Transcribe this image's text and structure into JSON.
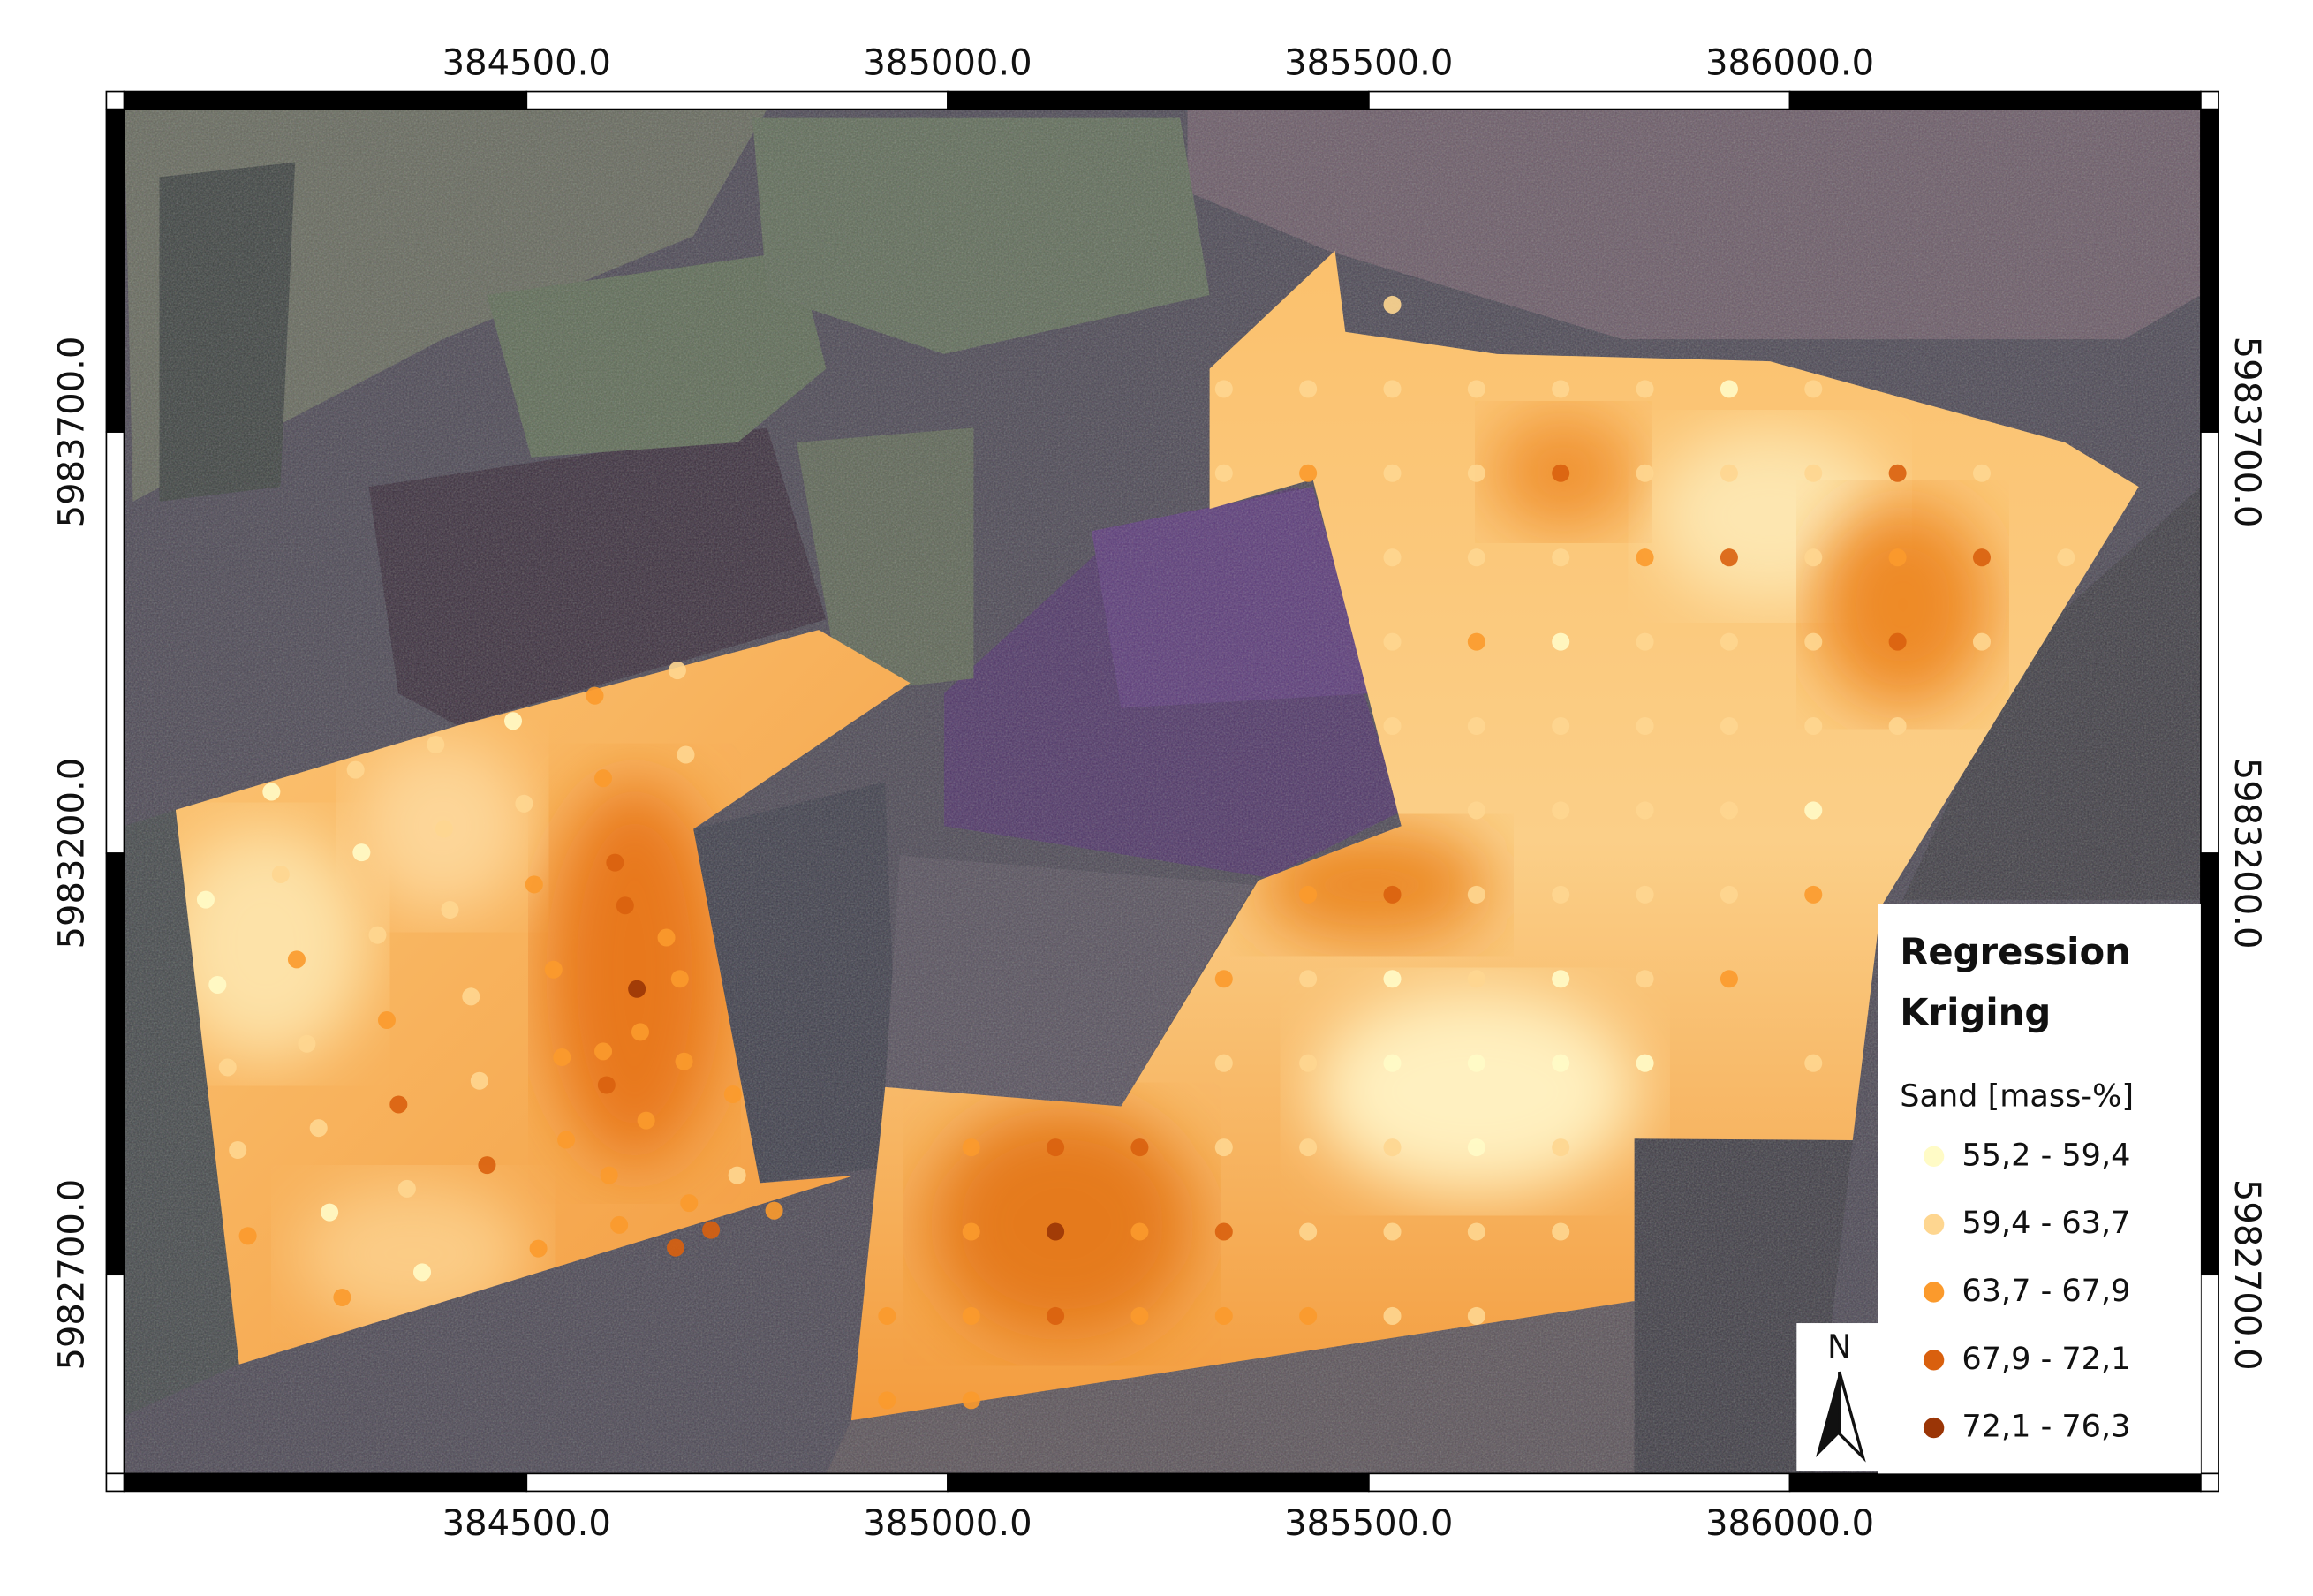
{
  "chart_data": {
    "type": "point-map",
    "xlim": [
      384022,
      386488
    ],
    "ylim": [
      5982464,
      5984083
    ],
    "xticks": [
      {
        "value": 384500,
        "label": "384500.0"
      },
      {
        "value": 385000,
        "label": "385000.0"
      },
      {
        "value": 385500,
        "label": "385500.0"
      },
      {
        "value": 386000,
        "label": "386000.0"
      }
    ],
    "yticks": [
      {
        "value": 5982700,
        "label": "5982700.0"
      },
      {
        "value": 5983200,
        "label": "5983200.0"
      },
      {
        "value": 5983700,
        "label": "5983700.0"
      }
    ],
    "north_label": "N",
    "legend": {
      "title": [
        "Regression",
        "Kriging"
      ],
      "subtitle": "Sand [mass-%]",
      "classes": [
        {
          "label": "55,2 - 59,4",
          "min": 55.2,
          "max": 59.4,
          "color": "#fffbc6"
        },
        {
          "label": "59,4 - 63,7",
          "min": 59.4,
          "max": 63.7,
          "color": "#fed690"
        },
        {
          "label": "63,7 - 67,9",
          "min": 63.7,
          "max": 67.9,
          "color": "#fb9a2c"
        },
        {
          "label": "67,9 - 72,1",
          "min": 67.9,
          "max": 72.1,
          "color": "#d9600e"
        },
        {
          "label": "72,1 - 76,3",
          "min": 72.1,
          "max": 76.3,
          "color": "#9a3506"
        }
      ]
    },
    "samples": [
      [
        385528,
        5983851,
        61.5
      ],
      [
        385328,
        5983751,
        61.5
      ],
      [
        385428,
        5983751,
        61.5
      ],
      [
        385528,
        5983751,
        61.5
      ],
      [
        385628,
        5983751,
        61.5
      ],
      [
        385728,
        5983751,
        61.5
      ],
      [
        385828,
        5983751,
        61.5
      ],
      [
        385928,
        5983751,
        57
      ],
      [
        386028,
        5983751,
        61.5
      ],
      [
        385328,
        5983651,
        61.5
      ],
      [
        385428,
        5983651,
        66
      ],
      [
        385528,
        5983651,
        61.5
      ],
      [
        385628,
        5983651,
        61.5
      ],
      [
        385728,
        5983651,
        70
      ],
      [
        385828,
        5983651,
        61.5
      ],
      [
        385928,
        5983651,
        61.5
      ],
      [
        386028,
        5983651,
        61.5
      ],
      [
        386128,
        5983651,
        70
      ],
      [
        386228,
        5983651,
        61.5
      ],
      [
        385528,
        5983551,
        61.5
      ],
      [
        385628,
        5983551,
        61.5
      ],
      [
        385728,
        5983551,
        61.5
      ],
      [
        385828,
        5983551,
        66
      ],
      [
        385928,
        5983551,
        70
      ],
      [
        386028,
        5983551,
        61.5
      ],
      [
        386128,
        5983551,
        66
      ],
      [
        386228,
        5983551,
        70
      ],
      [
        386328,
        5983551,
        61.5
      ],
      [
        385528,
        5983451,
        61.5
      ],
      [
        385628,
        5983451,
        66
      ],
      [
        385728,
        5983451,
        57
      ],
      [
        385828,
        5983451,
        61.5
      ],
      [
        385928,
        5983451,
        61.5
      ],
      [
        386028,
        5983451,
        61.5
      ],
      [
        386128,
        5983451,
        70
      ],
      [
        386228,
        5983451,
        61.5
      ],
      [
        385528,
        5983351,
        61.5
      ],
      [
        385628,
        5983351,
        61.5
      ],
      [
        385728,
        5983351,
        61.5
      ],
      [
        385828,
        5983351,
        61.5
      ],
      [
        385928,
        5983351,
        61.5
      ],
      [
        386028,
        5983351,
        61.5
      ],
      [
        386128,
        5983351,
        61.5
      ],
      [
        385628,
        5983251,
        61.5
      ],
      [
        385728,
        5983251,
        61.5
      ],
      [
        385828,
        5983251,
        61.5
      ],
      [
        385928,
        5983251,
        61.5
      ],
      [
        386028,
        5983251,
        57
      ],
      [
        385428,
        5983151,
        66
      ],
      [
        385528,
        5983151,
        70
      ],
      [
        385628,
        5983151,
        61.5
      ],
      [
        385728,
        5983151,
        61.5
      ],
      [
        385828,
        5983151,
        61.5
      ],
      [
        385928,
        5983151,
        61.5
      ],
      [
        386028,
        5983151,
        66
      ],
      [
        385328,
        5983051,
        66
      ],
      [
        385428,
        5983051,
        61.5
      ],
      [
        385528,
        5983051,
        57
      ],
      [
        385628,
        5983051,
        61.5
      ],
      [
        385728,
        5983051,
        57
      ],
      [
        385828,
        5983051,
        61.5
      ],
      [
        385928,
        5983051,
        66
      ],
      [
        385328,
        5982951,
        61.5
      ],
      [
        385428,
        5982951,
        61.5
      ],
      [
        385528,
        5982951,
        57
      ],
      [
        385628,
        5982951,
        57
      ],
      [
        385728,
        5982951,
        57
      ],
      [
        385828,
        5982951,
        57
      ],
      [
        386028,
        5982951,
        61.5
      ],
      [
        385028,
        5982851,
        66
      ],
      [
        385128,
        5982851,
        70
      ],
      [
        385228,
        5982851,
        70
      ],
      [
        385328,
        5982851,
        61.5
      ],
      [
        385428,
        5982851,
        61.5
      ],
      [
        385528,
        5982851,
        61.5
      ],
      [
        385628,
        5982851,
        57
      ],
      [
        385728,
        5982851,
        61.5
      ],
      [
        385028,
        5982751,
        66
      ],
      [
        385128,
        5982751,
        74
      ],
      [
        385228,
        5982751,
        66
      ],
      [
        385328,
        5982751,
        70
      ],
      [
        385428,
        5982751,
        61.5
      ],
      [
        385528,
        5982751,
        61.5
      ],
      [
        385628,
        5982751,
        61.5
      ],
      [
        385728,
        5982751,
        61.5
      ],
      [
        384928,
        5982651,
        66
      ],
      [
        385028,
        5982651,
        66
      ],
      [
        385128,
        5982651,
        70
      ],
      [
        385228,
        5982651,
        66
      ],
      [
        385328,
        5982651,
        66
      ],
      [
        385428,
        5982651,
        66
      ],
      [
        385528,
        5982651,
        61.5
      ],
      [
        385628,
        5982651,
        61.5
      ],
      [
        384928,
        5982551,
        66
      ],
      [
        385028,
        5982551,
        66
      ],
      [
        384679,
        5983417,
        61.5
      ],
      [
        384581,
        5983387,
        66
      ],
      [
        384484,
        5983357,
        57
      ],
      [
        384392,
        5983329,
        61.5
      ],
      [
        384297,
        5983299,
        61.5
      ],
      [
        384197,
        5983273,
        57
      ],
      [
        384689,
        5983317,
        61.5
      ],
      [
        384591,
        5983289,
        66
      ],
      [
        384497,
        5983259,
        61.5
      ],
      [
        384402,
        5983229,
        61.5
      ],
      [
        384304,
        5983201,
        57
      ],
      [
        384119,
        5983145,
        57
      ],
      [
        384208,
        5983175,
        61.5
      ],
      [
        384605,
        5983189,
        70
      ],
      [
        384509,
        5983163,
        66
      ],
      [
        384409,
        5983133,
        61.5
      ],
      [
        384323,
        5983103,
        61.5
      ],
      [
        384617,
        5983138,
        70
      ],
      [
        384666,
        5983100,
        66
      ],
      [
        384227,
        5983074,
        66
      ],
      [
        384133,
        5983044,
        57
      ],
      [
        384631,
        5983039,
        74
      ],
      [
        384682,
        5983051,
        66
      ],
      [
        384532,
        5983062,
        66
      ],
      [
        384434,
        5983030,
        61.5
      ],
      [
        384334,
        5983002,
        66
      ],
      [
        384635,
        5982988,
        66
      ],
      [
        384687,
        5982953,
        66
      ],
      [
        384591,
        5982965,
        66
      ],
      [
        384542,
        5982958,
        66
      ],
      [
        384239,
        5982974,
        61.5
      ],
      [
        384145,
        5982946,
        61.5
      ],
      [
        384348,
        5982902,
        70
      ],
      [
        384444,
        5982930,
        61.5
      ],
      [
        384595,
        5982925,
        70
      ],
      [
        384745,
        5982914,
        66
      ],
      [
        384253,
        5982874,
        61.5
      ],
      [
        384157,
        5982848,
        61.5
      ],
      [
        384547,
        5982860,
        66
      ],
      [
        384453,
        5982830,
        70
      ],
      [
        384642,
        5982883,
        66
      ],
      [
        384750,
        5982818,
        61.5
      ],
      [
        384598,
        5982818,
        66
      ],
      [
        384358,
        5982802,
        61.5
      ],
      [
        384266,
        5982774,
        57
      ],
      [
        384169,
        5982746,
        66
      ],
      [
        384693,
        5982785,
        66
      ],
      [
        384794,
        5982776,
        66
      ],
      [
        384610,
        5982759,
        66
      ],
      [
        384719,
        5982753,
        70
      ],
      [
        384677,
        5982732,
        70
      ],
      [
        384514,
        5982731,
        66
      ],
      [
        384376,
        5982703,
        57
      ],
      [
        384281,
        5982673,
        66
      ]
    ]
  }
}
